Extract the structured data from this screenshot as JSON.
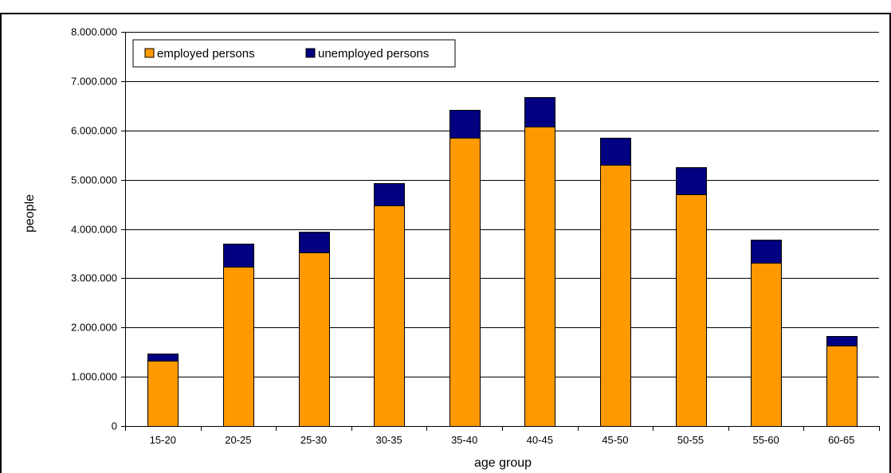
{
  "chart_data": {
    "type": "bar",
    "stacked": true,
    "title": "",
    "xlabel": "age group",
    "ylabel": "people",
    "categories": [
      "15-20",
      "20-25",
      "25-30",
      "30-35",
      "35-40",
      "40-45",
      "45-50",
      "50-55",
      "55-60",
      "60-65"
    ],
    "series": [
      {
        "name": "employed persons",
        "color": "#FF9900",
        "values": [
          1330000,
          3240000,
          3520000,
          4470000,
          5850000,
          6080000,
          5300000,
          4700000,
          3310000,
          1630000
        ]
      },
      {
        "name": "unemployed persons",
        "color": "#000080",
        "values": [
          140000,
          460000,
          430000,
          460000,
          560000,
          600000,
          550000,
          550000,
          470000,
          200000
        ]
      }
    ],
    "ylim": [
      0,
      8000000
    ],
    "yticks": [
      0,
      1000000,
      2000000,
      3000000,
      4000000,
      5000000,
      6000000,
      7000000,
      8000000
    ],
    "ytick_labels": [
      "0",
      "1.000.000",
      "2.000.000",
      "3.000.000",
      "4.000.000",
      "5.000.000",
      "6.000.000",
      "7.000.000",
      "8.000.000"
    ],
    "grid": true,
    "legend_position": "top-left"
  }
}
